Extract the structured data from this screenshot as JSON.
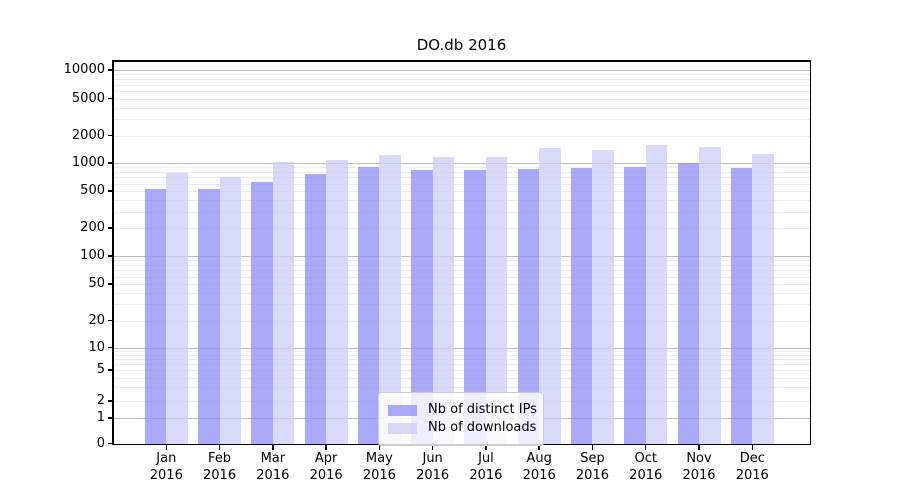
{
  "chart_data": {
    "type": "bar",
    "title": "DO.db 2016",
    "xlabel": "",
    "ylabel": "",
    "yscale": "symlog",
    "grid": true,
    "legend_position": "lower center",
    "year": "2016",
    "categories": [
      "Jan",
      "Feb",
      "Mar",
      "Apr",
      "May",
      "Jun",
      "Jul",
      "Aug",
      "Sep",
      "Oct",
      "Nov",
      "Dec"
    ],
    "series": [
      {
        "name": "Nb of distinct IPs",
        "color": "#8d8df5",
        "alpha": 0.75,
        "values": [
          530,
          520,
          620,
          760,
          900,
          850,
          850,
          860,
          890,
          910,
          1000,
          880
        ]
      },
      {
        "name": "Nb of downloads",
        "color": "#ccccf7",
        "alpha": 0.75,
        "values": [
          780,
          710,
          1030,
          1080,
          1230,
          1150,
          1170,
          1450,
          1380,
          1560,
          1480,
          1250
        ]
      }
    ],
    "y_ticks": [
      0,
      1,
      2,
      5,
      10,
      20,
      50,
      100,
      200,
      500,
      1000,
      2000,
      5000,
      10000
    ],
    "ylim": [
      0,
      12500
    ]
  },
  "colors": {
    "background": "#ffffff",
    "axis": "#000000",
    "major_grid": "#bdbdbd",
    "minor_grid": "#ececec",
    "tick_label": "#000000"
  }
}
